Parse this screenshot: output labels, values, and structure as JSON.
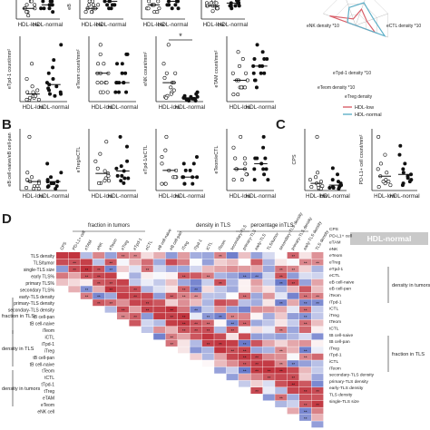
{
  "chart_data": [
    {
      "type": "scatter",
      "panel": "A",
      "plots": [
        {
          "ylabel": "",
          "categories": [
            "HDL-low",
            "HDL-normal"
          ],
          "series": [
            {
              "values": [
                3,
                4,
                2,
                5,
                3,
                6,
                2,
                4,
                1,
                3,
                5,
                2
              ]
            },
            {
              "values": [
                4,
                5,
                3,
                6,
                4,
                2,
                5,
                3,
                6,
                4,
                3,
                5
              ]
            }
          ]
        },
        {
          "ylabel": "eB",
          "categories": [
            "HDL-low",
            "HDL-normal"
          ],
          "series": [
            {
              "values": [
                2,
                3,
                4,
                3,
                5,
                2,
                4,
                3,
                2,
                5,
                3,
                4
              ]
            },
            {
              "values": [
                4,
                5,
                6,
                3,
                4,
                5,
                6,
                4,
                3,
                5,
                4,
                6
              ]
            }
          ]
        },
        {
          "ylabel": "",
          "categories": [
            "HDL-low",
            "HDL-normal"
          ],
          "series": [
            {
              "values": [
                3,
                4,
                5,
                2,
                4,
                3,
                5,
                6,
                4,
                3,
                2,
                4
              ]
            },
            {
              "values": [
                5,
                4,
                6,
                5,
                3,
                4,
                6,
                5,
                4,
                3,
                5,
                6
              ]
            }
          ]
        },
        {
          "ylabel": "",
          "categories": [
            "HDL-low",
            "HDL-normal"
          ],
          "series": [
            {
              "values": [
                4,
                6,
                5,
                7,
                3,
                5,
                6,
                4,
                5,
                6,
                4,
                5
              ]
            },
            {
              "values": [
                5,
                7,
                6,
                8,
                5,
                6,
                7,
                5,
                6,
                4,
                5,
                7
              ]
            }
          ]
        },
        {
          "ylabel": "eTpd-1 count/mm²",
          "categories": [
            "HDL-low",
            "HDL-normal"
          ],
          "series": [
            {
              "values": [
                0.2,
                0.5,
                0.1,
                0.8,
                0.3,
                1.2,
                0.1,
                0.4,
                2.0,
                0.2,
                0.6,
                0.3,
                0.1,
                0.5
              ]
            },
            {
              "values": [
                0.4,
                0.8,
                1.5,
                0.3,
                2.2,
                0.6,
                1.0,
                0.5,
                3.0,
                0.7,
                1.2,
                0.4,
                0.9,
                1.8
              ]
            }
          ]
        },
        {
          "ylabel": "eTeom count/mm²",
          "categories": [
            "HDL-low",
            "HDL-normal"
          ],
          "series": [
            {
              "values": [
                1,
                3,
                2,
                5,
                1,
                4,
                2,
                6,
                3,
                1,
                2,
                4,
                3,
                2
              ]
            },
            {
              "values": [
                2,
                4,
                1,
                5,
                2,
                3,
                1,
                4,
                2,
                3,
                1,
                2,
                5,
                2
              ]
            }
          ]
        },
        {
          "ylabel": "eNK count/mm²",
          "categories": [
            "HDL-low",
            "HDL-normal"
          ],
          "series": [
            {
              "values": [
                0.5,
                2,
                1,
                3,
                0.8,
                4,
                1.5,
                2.5,
                0.6,
                6,
                1.2,
                2,
                0.4,
                3
              ]
            },
            {
              "values": [
                0.2,
                0.5,
                0.1,
                0.8,
                0.3,
                0.6,
                0.2,
                1.0,
                0.4,
                0.3,
                0.5,
                0.2,
                0.1,
                0.4
              ]
            }
          ]
        },
        {
          "ylabel": "eTAM count/mm²",
          "categories": [
            "HDL-low",
            "HDL-normal"
          ],
          "series": [
            {
              "values": [
                1,
                2,
                4,
                3,
                6,
                2,
                5,
                3,
                1,
                4,
                2,
                7,
                3,
                2
              ]
            },
            {
              "values": [
                3,
                5,
                4,
                6,
                2,
                7,
                5,
                4,
                6,
                3,
                8,
                5,
                4,
                6
              ]
            }
          ]
        }
      ],
      "annotations": [
        "*"
      ]
    },
    {
      "type": "radar",
      "panel": "A",
      "axis_labels": [
        "eNK density *10",
        "eTpd-1 density *10",
        "eTeom density *10",
        "eTreg density",
        "eCTL density *10"
      ],
      "series": [
        {
          "name": "HDL-low",
          "color": "#d9606a"
        },
        {
          "name": "HDL-normal",
          "color": "#5fb0c8"
        }
      ]
    },
    {
      "type": "scatter",
      "panel": "B",
      "plots": [
        {
          "ylabel": "eB cell-naive/eB cell-pan",
          "categories": [
            "HDL-low",
            "HDL-normal"
          ],
          "series": [
            {
              "values": [
                0.05,
                0.1,
                0.02,
                0.2,
                0.08,
                0.6,
                0.03,
                0.15,
                0.1,
                0.05,
                0.02,
                0.12
              ]
            },
            {
              "values": [
                0.1,
                0.05,
                0.3,
                0.08,
                0.15,
                0.02,
                0.2,
                0.1,
                0.05,
                0.12,
                0.08,
                0.04
              ]
            }
          ]
        },
        {
          "ylabel": "eTreg/eCTL",
          "categories": [
            "HDL-low",
            "HDL-normal"
          ],
          "series": [
            {
              "values": [
                0.3,
                0.8,
                0.5,
                1.2,
                0.4,
                2.0,
                0.6,
                0.9,
                0.3,
                1.5,
                0.7,
                0.4
              ]
            },
            {
              "values": [
                0.5,
                1.0,
                0.4,
                1.8,
                0.6,
                1.2,
                0.3,
                0.8,
                2.2,
                0.5,
                0.9,
                0.6
              ]
            }
          ]
        },
        {
          "ylabel": "eTpd-1/eCTL",
          "categories": [
            "HDL-low",
            "HDL-normal"
          ],
          "series": [
            {
              "values": [
                0.1,
                0.3,
                0.2,
                0.5,
                0.1,
                0.8,
                0.2,
                0.4,
                0.1,
                0.3,
                0.2,
                0.6
              ]
            },
            {
              "values": [
                0.2,
                0.4,
                0.1,
                0.3,
                0.2,
                0.5,
                0.1,
                0.2,
                0.3,
                0.1,
                0.2,
                0.4
              ]
            }
          ]
        },
        {
          "ylabel": "eTeom/eCTL",
          "categories": [
            "HDL-low",
            "HDL-normal"
          ],
          "series": [
            {
              "values": [
                1,
                2,
                3,
                1.5,
                4,
                2.5,
                1,
                3,
                2,
                5,
                1.5,
                2
              ]
            },
            {
              "values": [
                2,
                3,
                1,
                4,
                2,
                3,
                1.5,
                2.5,
                5,
                2,
                3,
                1
              ]
            }
          ]
        }
      ]
    },
    {
      "type": "scatter",
      "panel": "C",
      "plots": [
        {
          "ylabel": "CPS",
          "categories": [
            "HDL-low",
            "HDL-normal"
          ],
          "series": [
            {
              "values": [
                0.5,
                1,
                0.2,
                2,
                0.8,
                6,
                0.3,
                1.5,
                0.4,
                0.6,
                1.2,
                0.2
              ]
            },
            {
              "values": [
                0.4,
                1.8,
                0.3,
                1.0,
                0.5,
                2.5,
                0.2,
                0.8,
                0.6,
                1.2,
                0.4,
                0.3
              ]
            }
          ]
        },
        {
          "ylabel": "PD-L1+ cell count/mm²",
          "categories": [
            "HDL-low",
            "HDL-normal"
          ],
          "series": [
            {
              "values": [
                0.5,
                1,
                0.3,
                2,
                0.6,
                3,
                0.4,
                1.5,
                0.2,
                0.8,
                1.2,
                0.5
              ]
            },
            {
              "values": [
                0.6,
                1.2,
                0.4,
                2.5,
                0.8,
                1.5,
                0.3,
                1.0,
                2.0,
                0.5,
                0.9,
                0.7
              ]
            }
          ]
        }
      ]
    },
    {
      "type": "heatmap",
      "panel": "D",
      "title": "HDL-normal",
      "group_labels": [
        "fraction in tumors",
        "density in TLS",
        "percentage inTLS",
        "fraction in TLS",
        "density in TLS",
        "density in tumors"
      ],
      "column_labels": [
        "CPS",
        "PD-L1+ cell",
        "eTAM",
        "eNK",
        "eTeom",
        "eTreg",
        "eTpd-1",
        "eCTL",
        "eB cell-naive",
        "eB cell-pan",
        "iTreg",
        "iTpd-1",
        "iCTL",
        "iTeom",
        "secondary-TLS",
        "primary-TLS",
        "early-TLS",
        "TLS/tumor",
        "secondary-TLS density",
        "primary-TLS density",
        "early-TLS density",
        "TLS density"
      ],
      "row_labels_left": [
        "TLS density",
        "TLS/tumor",
        "single-TLS size",
        "early TLS%",
        "primary TLS%",
        "secondary TLS%",
        "early-TLS density",
        "primary-TLS density",
        "secondary-TLS density",
        "tB cell-pan",
        "tB cell-naive",
        "iTeom",
        "iCTL",
        "iTpd-1",
        "iTreg",
        "tB cell-pan",
        "tB cell-naive",
        "tTeom",
        "tCTL",
        "tTpd-1",
        "tTreg",
        "eTAM",
        "eTeom",
        "eNK cell"
      ],
      "row_labels_right": [
        "CPS",
        "PD-L1+ cell",
        "eTAM",
        "eNK",
        "eTeom",
        "eTreg",
        "eTpd-1",
        "eCTL",
        "eB cell-naive",
        "eB cell-pan",
        "iTeom",
        "iTpd-1",
        "iCTL",
        "iTreg",
        "tTeom",
        "tCTL",
        "tB cell-naive",
        "tB cell-pan",
        "iTreg",
        "iTpd-1",
        "iCTL",
        "iTeom",
        "secondary-TLS density",
        "primary-TLS density",
        "early-TLS density",
        "TLS density",
        "single-TLS size"
      ],
      "side_labels_left": [
        "fraction in TLS",
        "density in TLS",
        "density in tumors"
      ],
      "side_labels_right": [
        "density in tumors",
        "fraction in TLS"
      ],
      "colors": {
        "positive": "#c0303a",
        "negative": "#2f45b5",
        "neutral": "#ffffff"
      }
    }
  ],
  "panel_letters": [
    "B",
    "C",
    "D"
  ],
  "x_category_labels": [
    "HDL-low",
    "HDL-normal"
  ],
  "legend": {
    "items": [
      "HDL-low",
      "HDL-normal"
    ],
    "colors": [
      "#d9606a",
      "#5fb0c8"
    ]
  }
}
